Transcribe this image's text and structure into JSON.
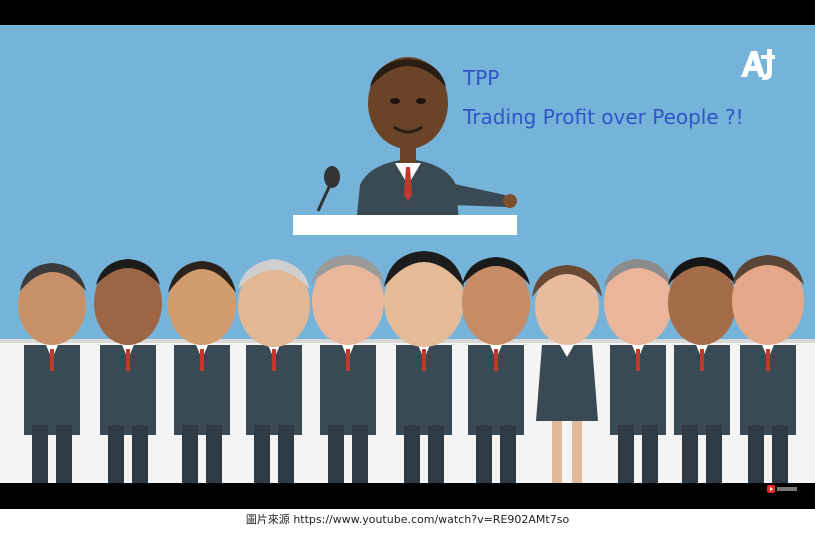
{
  "headline": {
    "line1": "TPP",
    "line2": "Trading Profit over People ?!"
  },
  "logo": {
    "icon": "aj-plus-logo-icon",
    "color": "#ffffff"
  },
  "caption": {
    "prefix": "圖片來源",
    "url": "https://www.youtube.com/watch?v=RE902AMt7so"
  },
  "colors": {
    "background": "#76b3d8",
    "title": "#2f55c7",
    "suit": "#3a4a55",
    "tie": "#c0392b"
  },
  "figures": {
    "speaker": "speaker-figure",
    "leaders": [
      "leader-figure-1",
      "leader-figure-2",
      "leader-figure-3",
      "leader-figure-4",
      "leader-figure-5",
      "leader-figure-6",
      "leader-figure-7",
      "leader-figure-8",
      "leader-figure-9",
      "leader-figure-10",
      "leader-figure-11"
    ]
  }
}
